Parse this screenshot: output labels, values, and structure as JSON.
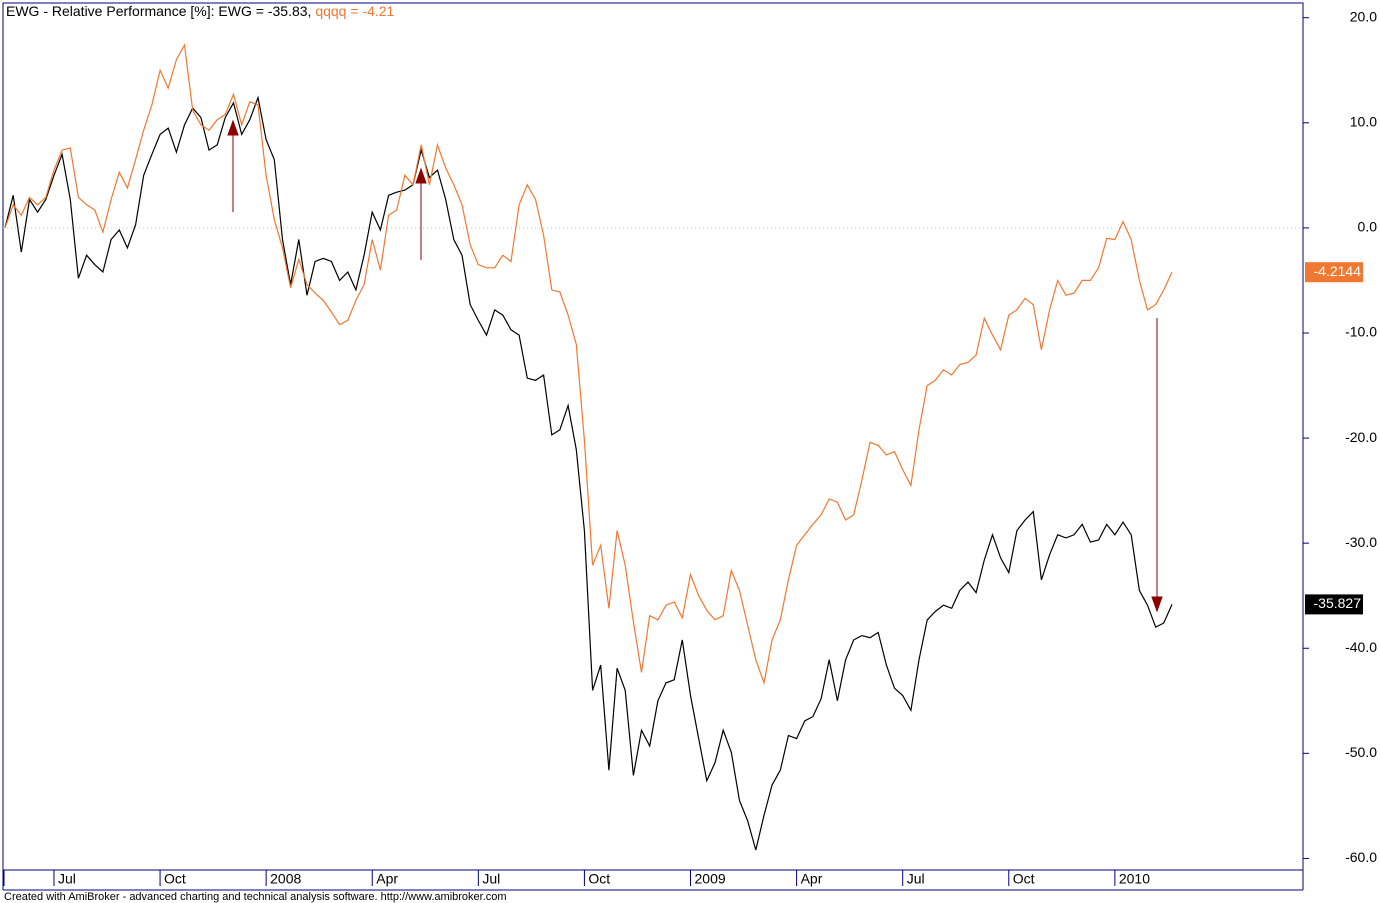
{
  "chart_data": {
    "type": "line",
    "title": "EWG - Relative Performance [%]:",
    "footer": "Created with AmiBroker - advanced charting and technical analysis software. http://www.amibroker.com",
    "categories": [
      null,
      null,
      null,
      null,
      null,
      null,
      "Jul",
      null,
      null,
      null,
      null,
      null,
      null,
      null,
      null,
      null,
      null,
      null,
      null,
      "Oct",
      null,
      null,
      null,
      null,
      null,
      null,
      null,
      null,
      null,
      null,
      null,
      null,
      "2008",
      null,
      null,
      null,
      null,
      null,
      null,
      null,
      null,
      null,
      null,
      null,
      null,
      "Apr",
      null,
      null,
      null,
      null,
      null,
      null,
      null,
      null,
      null,
      null,
      null,
      null,
      "Jul",
      null,
      null,
      null,
      null,
      null,
      null,
      null,
      null,
      null,
      null,
      null,
      null,
      "Oct",
      null,
      null,
      null,
      null,
      null,
      null,
      null,
      null,
      null,
      null,
      null,
      null,
      "2009",
      null,
      null,
      null,
      null,
      null,
      null,
      null,
      null,
      null,
      null,
      null,
      null,
      "Apr",
      null,
      null,
      null,
      null,
      null,
      null,
      null,
      null,
      null,
      null,
      null,
      null,
      "Jul",
      null,
      null,
      null,
      null,
      null,
      null,
      null,
      null,
      null,
      null,
      null,
      null,
      "Oct",
      null,
      null,
      null,
      null,
      null,
      null,
      null,
      null,
      null,
      null,
      null,
      null,
      "2010",
      null,
      null,
      null,
      null,
      null,
      null,
      null
    ],
    "series": [
      {
        "name": "EWG",
        "color": "#000000",
        "header_label": "-35.83",
        "values": [
          0,
          3.1,
          -2.3,
          2.7,
          1.5,
          2.7,
          5,
          7,
          2.7,
          -4.8,
          -2.6,
          -3.5,
          -4.2,
          -1.1,
          -0.2,
          -1.9,
          0.3,
          5,
          7,
          8.9,
          9.5,
          7.2,
          9.8,
          11.4,
          10.5,
          7.4,
          7.9,
          10.5,
          11.9,
          8.9,
          10.3,
          12.4,
          8.4,
          6.5,
          -1.1,
          -5.4,
          -1.1,
          -6.4,
          -3.2,
          -2.9,
          -3.2,
          -5,
          -4.2,
          -5.9,
          -2.6,
          1.5,
          -0.2,
          3.1,
          3.4,
          3.6,
          4.1,
          7.4,
          4.8,
          5.5,
          2.7,
          -1.1,
          -2.6,
          -7.3,
          -8.8,
          -10.2,
          -7.8,
          -8.3,
          -9.7,
          -10.2,
          -14.3,
          -14.5,
          -14,
          -19.7,
          -19.2,
          -16.9,
          -21.1,
          -28.8,
          -44,
          -41.6,
          -51.6,
          -41.9,
          -44,
          -52.1,
          -47.8,
          -49.3,
          -45,
          -43.3,
          -43,
          -39.2,
          -44.5,
          -48.6,
          -52.6,
          -50.9,
          -47.8,
          -49.9,
          -54.5,
          -56.4,
          -59.2,
          -55.9,
          -53,
          -51.6,
          -48.3,
          -48.6,
          -46.9,
          -46.5,
          -44.8,
          -41.1,
          -45,
          -41.1,
          -39.2,
          -38.8,
          -39,
          -38.5,
          -41.6,
          -43.8,
          -44.5,
          -45.9,
          -41.1,
          -37.3,
          -36.5,
          -35.9,
          -36.2,
          -34.5,
          -33.7,
          -34.7,
          -31.6,
          -29.2,
          -31.4,
          -32.8,
          -28.8,
          -27.8,
          -27,
          -33.5,
          -31.1,
          -29.2,
          -29.5,
          -29.2,
          -28.2,
          -29.9,
          -29.7,
          -28.2,
          -29.2,
          -28,
          -29.2,
          -34.5,
          -35.9,
          -38,
          -37.6,
          -35.827
        ]
      },
      {
        "name": "qqqq",
        "color": "#f07830",
        "header_label": "-4.21",
        "values": [
          0,
          2.2,
          1.2,
          2.9,
          2.2,
          2.9,
          5.5,
          7.4,
          7.6,
          2.9,
          2.2,
          1.7,
          -0.4,
          2.7,
          5.3,
          3.8,
          6.5,
          9.3,
          11.7,
          15,
          13.3,
          16,
          17.4,
          11.2,
          9.8,
          9.3,
          10.3,
          10.8,
          12.7,
          9.8,
          12,
          11.7,
          5,
          0.8,
          -1.9,
          -5.7,
          -3,
          -5.4,
          -6.2,
          -6.9,
          -8,
          -9.2,
          -8.8,
          -6.9,
          -5.4,
          -1.1,
          -4,
          1.2,
          1.7,
          5,
          4.1,
          7.9,
          4.1,
          7.9,
          5.7,
          4.1,
          2.2,
          -1.6,
          -3.5,
          -3.8,
          -3.8,
          -2.6,
          -3.2,
          2.2,
          4.1,
          2.7,
          -0.7,
          -5.9,
          -6.1,
          -8.3,
          -11.1,
          -20.2,
          -32.1,
          -30.2,
          -36.2,
          -28.8,
          -32.1,
          -37.5,
          -42.3,
          -36.9,
          -37.3,
          -35.9,
          -35.6,
          -37.1,
          -33,
          -35,
          -36.4,
          -37.3,
          -36.9,
          -32.6,
          -34.5,
          -37.8,
          -41.1,
          -43.3,
          -39.2,
          -37.3,
          -33.5,
          -30.2,
          -29.2,
          -28.2,
          -27.3,
          -25.8,
          -26.1,
          -27.8,
          -27.3,
          -24,
          -20.4,
          -20.7,
          -21.6,
          -21.3,
          -23,
          -24.5,
          -19.2,
          -15,
          -14.5,
          -13.5,
          -14,
          -13,
          -12.8,
          -12.1,
          -8.6,
          -10.2,
          -11.6,
          -8.3,
          -7.8,
          -6.7,
          -7.3,
          -11.6,
          -7.8,
          -5,
          -6.4,
          -6.2,
          -5,
          -5,
          -3.8,
          -1,
          -1.1,
          0.6,
          -1.1,
          -5,
          -7.8,
          -7.3,
          -5.9,
          -4.2144
        ]
      }
    ],
    "ylim": [
      -61.1,
      21.4
    ],
    "yticks": [
      {
        "value": 20,
        "label": "20.0"
      },
      {
        "value": 10,
        "label": "10.0"
      },
      {
        "value": 0,
        "label": "0.0"
      },
      {
        "value": -10,
        "label": "-10.0"
      },
      {
        "value": -20,
        "label": "-20.0"
      },
      {
        "value": -30,
        "label": "-30.0"
      },
      {
        "value": -40,
        "label": "-40.0"
      },
      {
        "value": -50,
        "label": "-50.0"
      },
      {
        "value": -60,
        "label": "-60.0"
      }
    ],
    "zero_line": true
  }
}
